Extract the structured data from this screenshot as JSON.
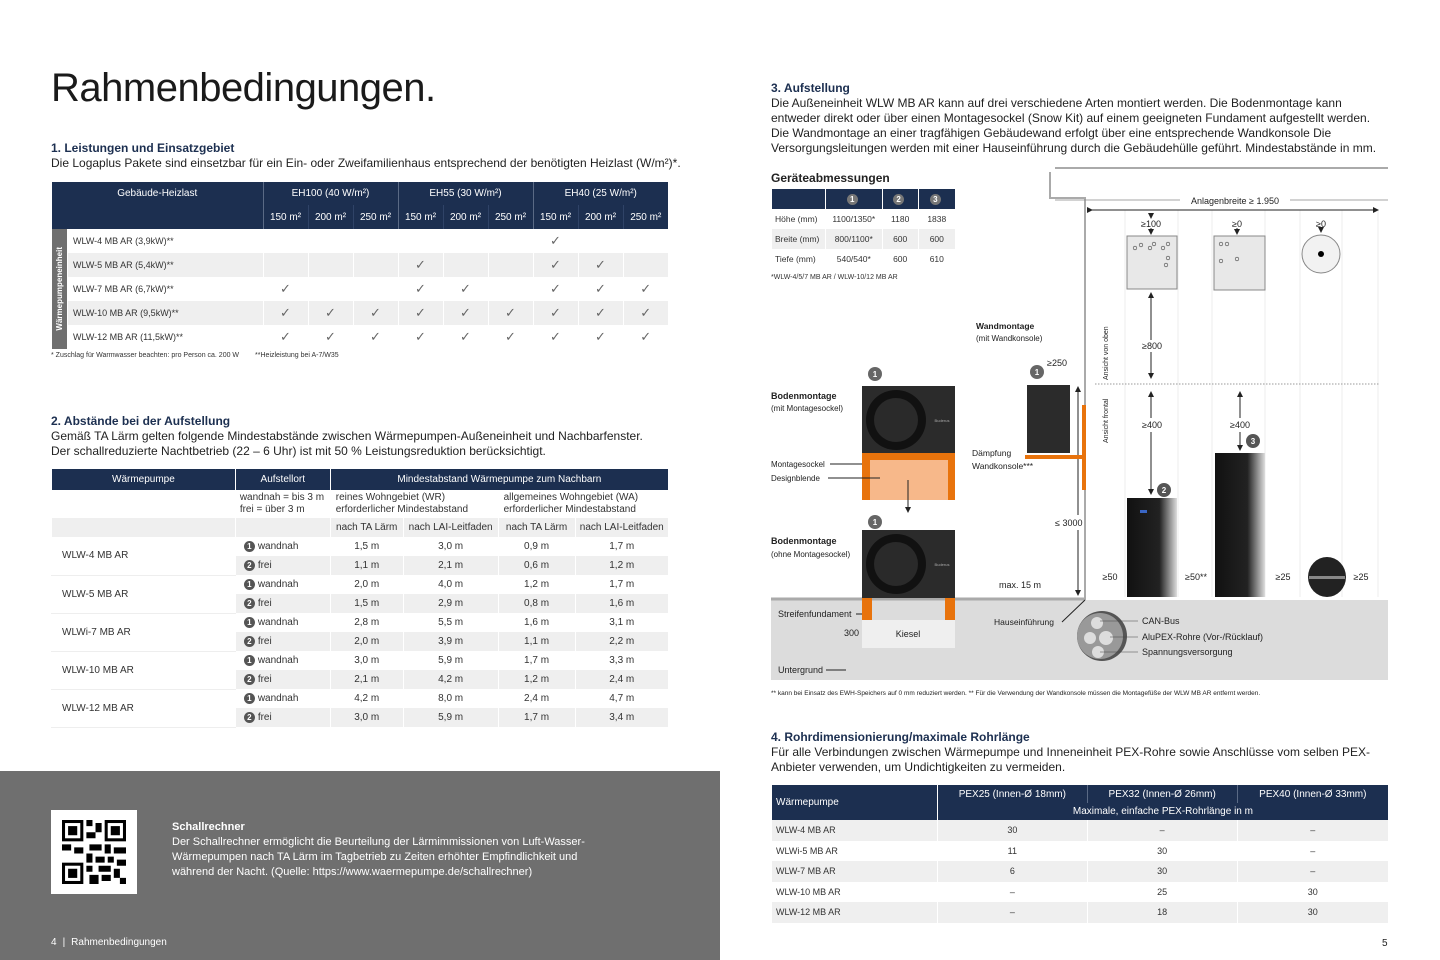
{
  "left": {
    "title": "Rahmenbedingungen.",
    "s1": {
      "heading": "1. Leistungen und Einsatzgebiet",
      "text": "Die Logaplus Pakete sind einsetzbar für ein Ein- oder Zweifamilienhaus entsprechend der benötigten Heizlast (W/m²)*.",
      "table": {
        "corner": "Gebäude-Heizlast",
        "side_label": "Wärmepumpeneinheit",
        "groups": [
          "EH100 (40 W/m²)",
          "EH55 (30 W/m²)",
          "EH40 (25 W/m²)"
        ],
        "sizes": [
          "150 m²",
          "200 m²",
          "250 m²"
        ],
        "rows": [
          {
            "label": "WLW-4 MB AR (3,9kW)**",
            "checks": [
              0,
              0,
              0,
              0,
              0,
              0,
              1,
              0,
              0
            ]
          },
          {
            "label": "WLW-5 MB AR (5,4kW)**",
            "checks": [
              0,
              0,
              0,
              1,
              0,
              0,
              1,
              1,
              0
            ]
          },
          {
            "label": "WLW-7 MB AR (6,7kW)**",
            "checks": [
              1,
              0,
              0,
              1,
              1,
              0,
              1,
              1,
              1
            ]
          },
          {
            "label": "WLW-10 MB AR (9,5kW)**",
            "checks": [
              1,
              1,
              1,
              1,
              1,
              1,
              1,
              1,
              1
            ]
          },
          {
            "label": "WLW-12 MB AR (11,5kW)**",
            "checks": [
              1,
              1,
              1,
              1,
              1,
              1,
              1,
              1,
              1
            ]
          }
        ],
        "check_symbol": "✓",
        "note1": "* Zuschlag für Warmwasser beachten: pro Person ca. 200 W",
        "note2": "**Heizleistung bei A-7/W35"
      }
    },
    "s2": {
      "heading": "2. Abstände bei der Aufstellung",
      "text1": "Gemäß TA Lärm gelten folgende Mindestabstände zwischen Wärmepumpen-Außeneinheit und Nachbarfenster.",
      "text2": "Der schallreduzierte Nachtbetrieb (22 – 6 Uhr) ist mit 50 % Leistungsreduktion berücksichtigt.",
      "table": {
        "h_pump": "Wärmepumpe",
        "h_place": "Aufstellort",
        "h_dist": "Mindestabstand Wärmepumpe zum Nachbarn",
        "place_desc1": "wandnah = bis 3 m",
        "place_desc2": "frei = über 3 m",
        "wr1": "reines Wohngebiet (WR)",
        "wr2": "erforderlicher Mindestabstand",
        "wa1": "allgemeines Wohngebiet (WA)",
        "wa2": "erforderlicher Mindestabstand",
        "sub": [
          "nach TA Lärm",
          "nach LAI-Leitfaden",
          "nach TA Lärm",
          "nach LAI-Leitfaden"
        ],
        "rows": [
          {
            "pump": "WLW-4 MB AR",
            "lines": [
              {
                "n": "1",
                "place": "wandnah",
                "v": [
                  "1,5 m",
                  "3,0 m",
                  "0,9 m",
                  "1,7 m"
                ]
              },
              {
                "n": "2",
                "place": "frei",
                "v": [
                  "1,1 m",
                  "2,1 m",
                  "0,6 m",
                  "1,2 m"
                ]
              }
            ]
          },
          {
            "pump": "WLW-5 MB AR",
            "lines": [
              {
                "n": "1",
                "place": "wandnah",
                "v": [
                  "2,0 m",
                  "4,0 m",
                  "1,2 m",
                  "1,7 m"
                ]
              },
              {
                "n": "2",
                "place": "frei",
                "v": [
                  "1,5 m",
                  "2,9 m",
                  "0,8 m",
                  "1,6 m"
                ]
              }
            ]
          },
          {
            "pump": "WLWi-7 MB AR",
            "lines": [
              {
                "n": "1",
                "place": "wandnah",
                "v": [
                  "2,8 m",
                  "5,5 m",
                  "1,6 m",
                  "3,1 m"
                ]
              },
              {
                "n": "2",
                "place": "frei",
                "v": [
                  "2,0 m",
                  "3,9 m",
                  "1,1 m",
                  "2,2 m"
                ]
              }
            ]
          },
          {
            "pump": "WLW-10 MB AR",
            "lines": [
              {
                "n": "1",
                "place": "wandnah",
                "v": [
                  "3,0 m",
                  "5,9 m",
                  "1,7 m",
                  "3,3 m"
                ]
              },
              {
                "n": "2",
                "place": "frei",
                "v": [
                  "2,1 m",
                  "4,2 m",
                  "1,2 m",
                  "2,4 m"
                ]
              }
            ]
          },
          {
            "pump": "WLW-12 MB AR",
            "lines": [
              {
                "n": "1",
                "place": "wandnah",
                "v": [
                  "4,2 m",
                  "8,0 m",
                  "2,4 m",
                  "4,7 m"
                ]
              },
              {
                "n": "2",
                "place": "frei",
                "v": [
                  "3,0 m",
                  "5,9 m",
                  "1,7 m",
                  "3,4 m"
                ]
              }
            ]
          }
        ]
      }
    },
    "box": {
      "heading": "Schallrechner",
      "text": "Der Schallrechner ermöglicht die Beurteilung der Lärmimmissionen von Luft-Wasser-Wärmepumpen nach TA Lärm im Tagbetrieb zu Zeiten erhöhter Empfindlichkeit und während der Nacht. (Quelle: https://www.waermepumpe.de/schallrechner)",
      "qr_icon": "qr-code"
    },
    "footer": {
      "page": "4",
      "sep": "|",
      "section": "Rahmenbedingungen"
    }
  },
  "right": {
    "s3": {
      "heading": "3. Aufstellung",
      "text": "Die Außeneinheit WLW MB AR kann auf drei verschiedene Arten montiert werden. Die Bodenmontage kann entweder direkt oder über einen Montagesockel (Snow Kit) auf einem geeigneten Fundament aufgestellt werden. Die Wandmontage an einer tragfähigen Gebäudewand erfolgt über eine entsprechende Wandkonsole Die Versorgungsleitungen werden mit einer Hauseinführung durch die Gebäudehülle geführt. Mindestabstände in mm.",
      "dims": {
        "heading": "Geräteabmessungen",
        "cols": [
          "1",
          "2",
          "3"
        ],
        "rows": [
          {
            "label": "Höhe (mm)",
            "v": [
              "1100/1350*",
              "1180",
              "1838"
            ]
          },
          {
            "label": "Breite (mm)",
            "v": [
              "800/1100*",
              "600",
              "600"
            ]
          },
          {
            "label": "Tiefe (mm)",
            "v": [
              "540/540*",
              "600",
              "610"
            ]
          }
        ],
        "note": "*WLW-4/5/7 MB AR / WLW-10/12 MB AR"
      },
      "diagram": {
        "floor_mount": "Bodenmontage",
        "with_socket": "(mit Montagesockel)",
        "without_socket": "(ohne Montagesockel)",
        "socket": "Montagesockel",
        "design_cover": "Designblende",
        "strip_foundation": "Streifenfundament",
        "gravel": "Kiesel",
        "d300": "300",
        "ground": "Untergrund",
        "wall_mount": "Wandmontage",
        "with_bracket": "(mit Wandkonsole)",
        "damping": "Dämpfung",
        "bracket": "Wandkonsole***",
        "d250": "≥250",
        "d3000": "≤ 3000",
        "max15": "max. 15 m",
        "house_entry": "Hauseinführung",
        "can": "CAN-Bus",
        "alupex": "AluPEX-Rohre (Vor-/Rücklauf)",
        "power": "Spannungsversorgung",
        "width": "Anlagenbreite ≥ 1.950",
        "top_view": "Ansicht von oben",
        "front_view": "Ansicht frontal",
        "d100": "≥100",
        "d0a": "≥0",
        "d0b": "≥0",
        "d800": "≥800",
        "d400a": "≥400",
        "d400b": "≥400",
        "d50": "≥50",
        "d50s": "≥50**",
        "d25a": "≥25",
        "d25b": "≥25",
        "badge1": "1",
        "badge2": "2",
        "badge3": "3",
        "brand": "Buderus",
        "accent": "#e8730c",
        "footnote": "** kann bei Einsatz des EWH-Speichers auf 0 mm reduziert werden. ** Für die Verwendung der Wandkonsole müssen die Montagefüße der WLW MB AR entfernt werden."
      }
    },
    "s4": {
      "heading": "4. Rohrdimensionierung/maximale Rohrlänge",
      "text": "Für alle Verbindungen zwischen Wärmepumpe und Inneneinheit PEX-Rohre sowie Anschlüsse vom selben PEX-Anbieter verwenden, um Undichtigkeiten zu vermeiden.",
      "table": {
        "h_pump": "Wärmepumpe",
        "cols": [
          "PEX25 (Innen-Ø 18mm)",
          "PEX32 (Innen-Ø 26mm)",
          "PEX40 (Innen-Ø 33mm)"
        ],
        "sub": "Maximale, einfache PEX-Rohrlänge in m",
        "rows": [
          {
            "label": "WLW-4 MB AR",
            "v": [
              "30",
              "–",
              "–"
            ]
          },
          {
            "label": "WLWi-5 MB AR",
            "v": [
              "11",
              "30",
              "–"
            ]
          },
          {
            "label": "WLW-7 MB AR",
            "v": [
              "6",
              "30",
              "–"
            ]
          },
          {
            "label": "WLW-10 MB AR",
            "v": [
              "–",
              "25",
              "30"
            ]
          },
          {
            "label": "WLW-12 MB AR",
            "v": [
              "–",
              "18",
              "30"
            ]
          }
        ]
      }
    },
    "footer": {
      "page": "5"
    }
  },
  "colors": {
    "navy": "#1c2f50",
    "orange": "#e8730c",
    "grey_box": "#6f6f6f"
  }
}
